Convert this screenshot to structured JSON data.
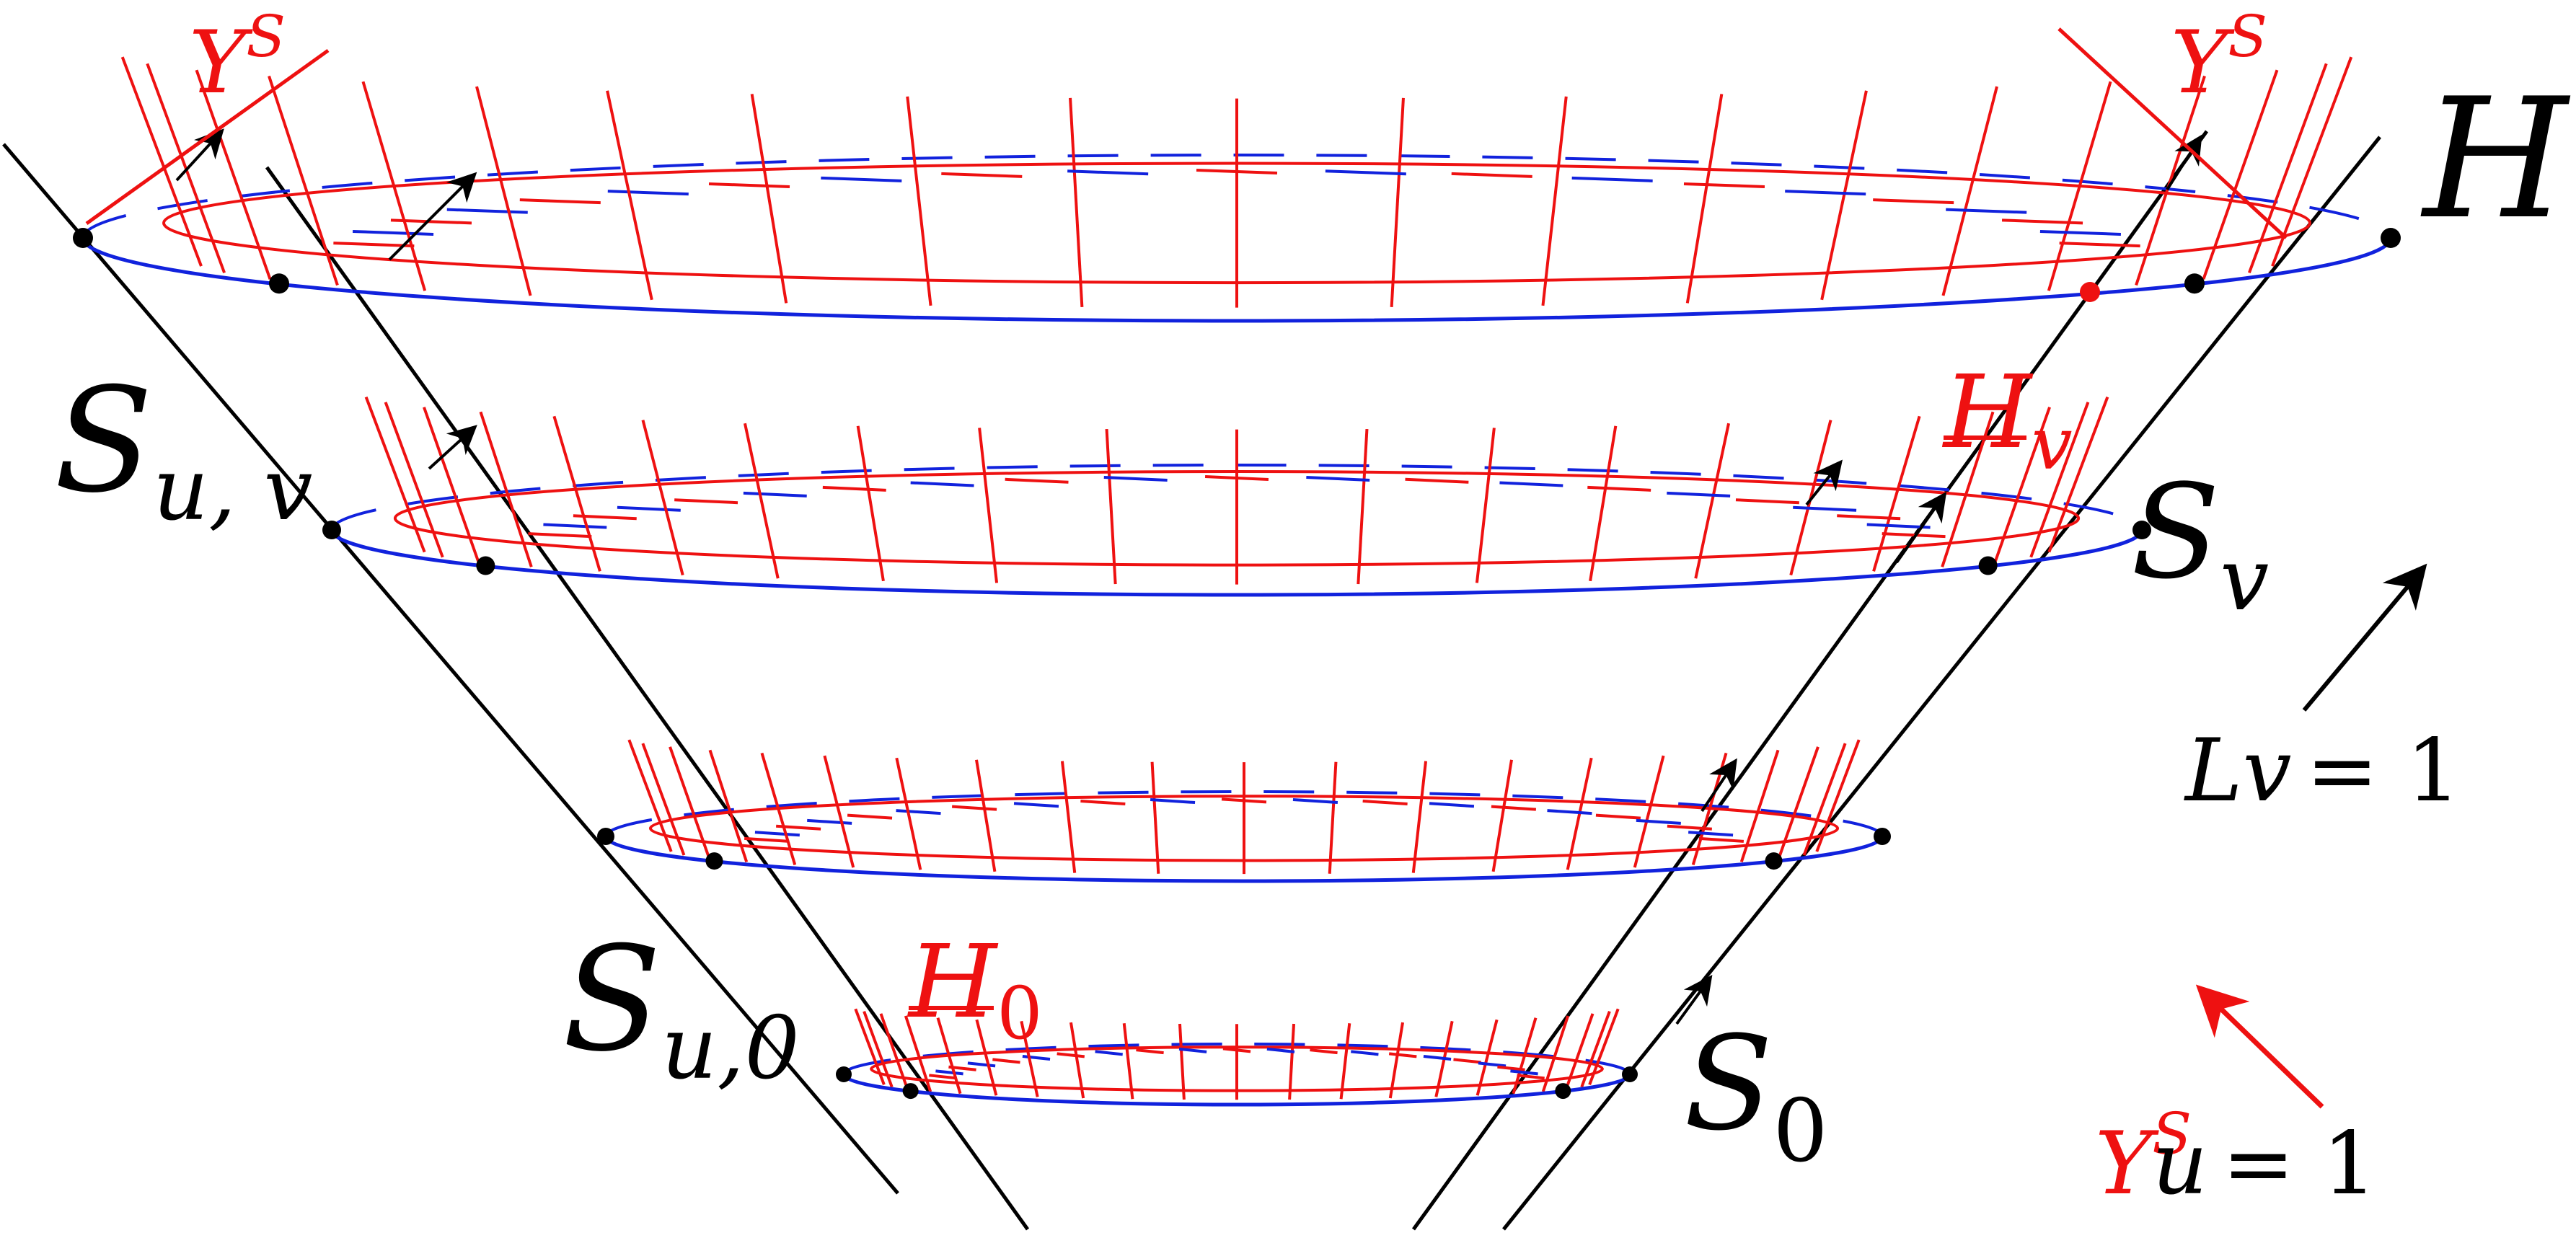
{
  "colors": {
    "red": "#ee1111",
    "blue": "#1122dd",
    "black": "#000000"
  },
  "labels": {
    "Y_top_left": {
      "base": "Y",
      "sup": "S"
    },
    "Y_top_right": {
      "base": "Y",
      "sup": "S"
    },
    "H": "H",
    "H_v": {
      "base": "H",
      "sub": "v"
    },
    "H_0": {
      "base": "H",
      "sub": "0"
    },
    "S_uv": {
      "base": "S",
      "sub": "u, v"
    },
    "S_u0": {
      "base": "S",
      "sub": "u,0"
    },
    "S_v": {
      "base": "S",
      "sub": "v"
    },
    "S_0": {
      "base": "S",
      "sub": "0"
    },
    "Lv_eq": {
      "lhs": "Lv",
      "rhs": "= 1"
    },
    "Yu_eq": {
      "base": "Y",
      "sup": "S",
      "lhs": "u",
      "rhs": "= 1"
    }
  }
}
